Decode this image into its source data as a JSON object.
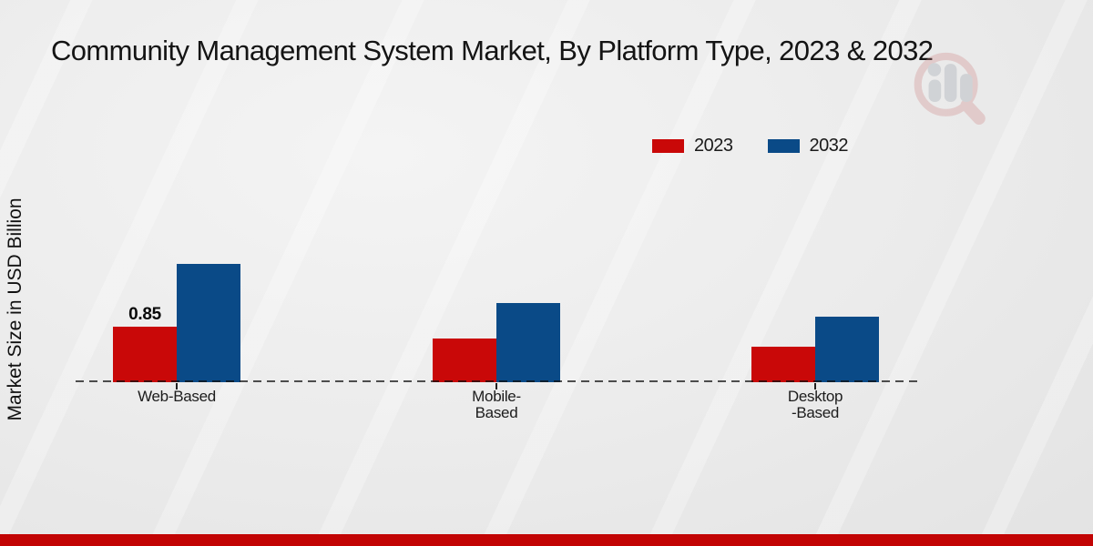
{
  "chart_data": {
    "type": "bar",
    "title": "Community Management System Market, By Platform Type, 2023 & 2032",
    "xlabel": "",
    "ylabel": "Market Size in USD Billion",
    "categories": [
      "Web-Based",
      "Mobile-Based",
      "Desktop-Based"
    ],
    "category_label_lines": [
      [
        "Web-Based"
      ],
      [
        "Mobile-",
        "Based"
      ],
      [
        "Desktop",
        "-Based"
      ]
    ],
    "series": [
      {
        "name": "2023",
        "color": "#c90808",
        "values": [
          0.85,
          0.67,
          0.54
        ]
      },
      {
        "name": "2032",
        "color": "#0a4a87",
        "values": [
          1.81,
          1.21,
          1.0
        ]
      }
    ],
    "bar_value_labels": [
      [
        "0.85",
        "",
        ""
      ],
      [
        "",
        "",
        ""
      ]
    ],
    "ylim": [
      0,
      2.2
    ],
    "grid": false,
    "legend_position": "top-right",
    "baseline_style": "dashed"
  },
  "icons": {
    "watermark": "magnifier-bar-chart-logo"
  },
  "footer": {
    "bar_color": "#c20404"
  }
}
